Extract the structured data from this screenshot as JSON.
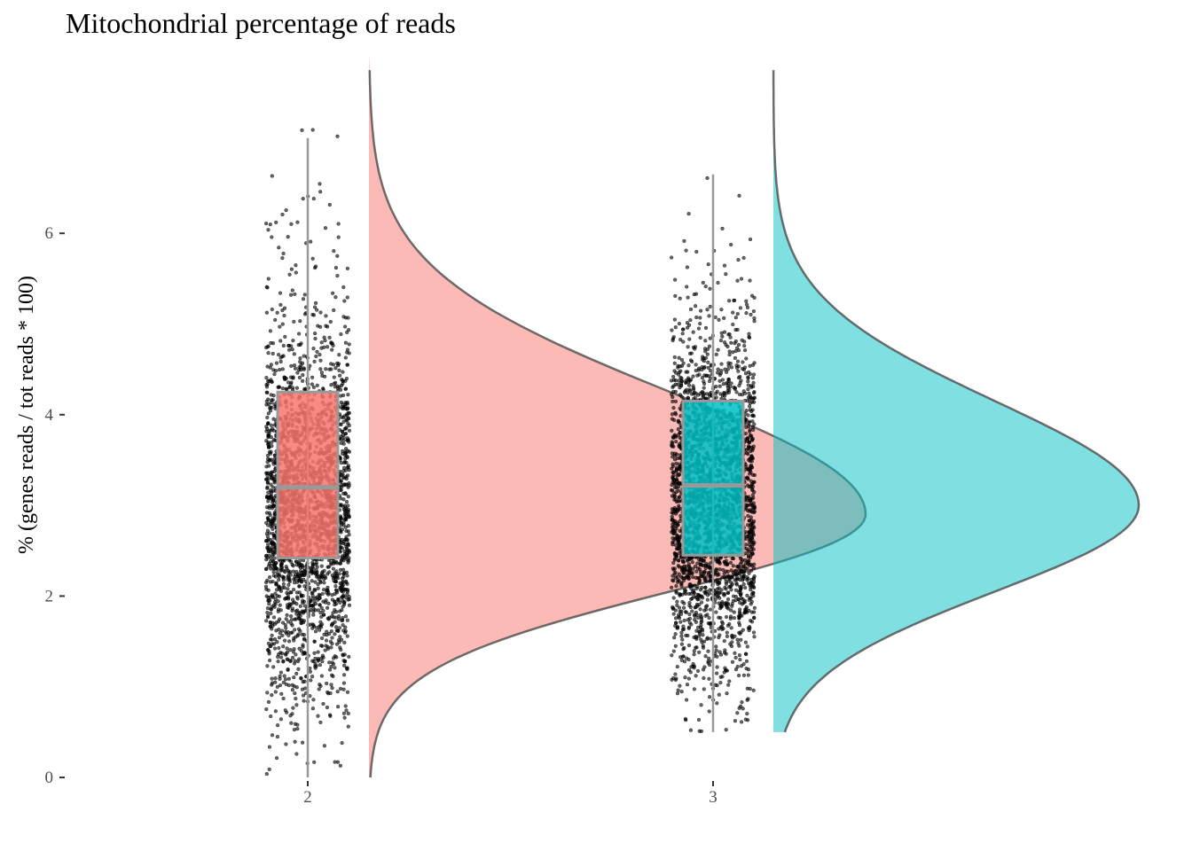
{
  "chart_data": {
    "type": "raincloud",
    "title": "Mitochondrial percentage of reads",
    "xlabel": "",
    "ylabel": "% (genes reads / tot reads * 100)",
    "ylim": [
      0,
      7.8
    ],
    "yticks": [
      "0",
      "2",
      "4",
      "6"
    ],
    "grid": false,
    "legend": "none",
    "categories": [
      "2",
      "3"
    ],
    "series": [
      {
        "category": "2",
        "color": "#f8766d",
        "density_color": "#f8766d",
        "box": {
          "min": 0.0,
          "q1": 2.42,
          "median": 3.2,
          "q3": 4.25,
          "max": 7.05
        },
        "density_peak": 2.9,
        "range": [
          0.0,
          7.8
        ]
      },
      {
        "category": "3",
        "color": "#00bfc4",
        "density_color": "#00bfc4",
        "box": {
          "min": 0.5,
          "q1": 2.45,
          "median": 3.22,
          "q3": 4.15,
          "max": 6.65
        },
        "density_peak": 3.0,
        "range": [
          0.5,
          7.8
        ]
      }
    ]
  }
}
